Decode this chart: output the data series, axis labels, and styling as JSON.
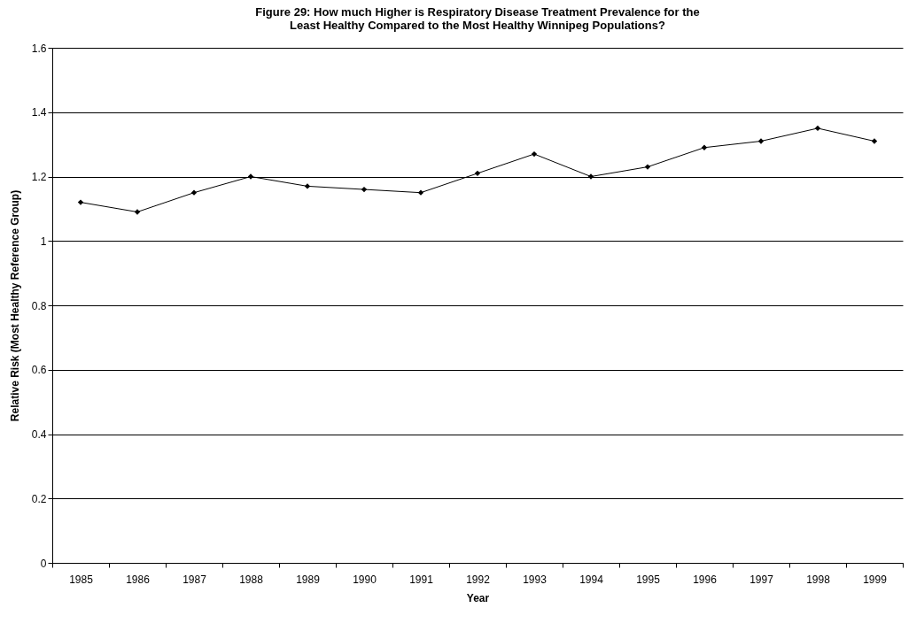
{
  "chart_data": {
    "type": "line",
    "title": "Figure 29: How much Higher is Respiratory Disease Treatment Prevalence for the Least Healthy Compared to the Most Healthy Winnipeg Populations?",
    "xlabel": "Year",
    "ylabel": "Relative Risk (Most Healthy Reference Group)",
    "categories": [
      "1985",
      "1986",
      "1987",
      "1988",
      "1989",
      "1990",
      "1991",
      "1992",
      "1993",
      "1994",
      "1995",
      "1996",
      "1997",
      "1998",
      "1999"
    ],
    "series": [
      {
        "color": "#000000",
        "values": [
          1.12,
          1.09,
          1.15,
          1.2,
          1.17,
          1.16,
          1.15,
          1.21,
          1.27,
          1.2,
          1.23,
          1.29,
          1.31,
          1.35,
          1.31
        ]
      }
    ],
    "ylim": [
      0,
      1.6
    ],
    "yticks": [
      0,
      0.2,
      0.4,
      0.6,
      0.8,
      1,
      1.2,
      1.4,
      1.6
    ],
    "grid": "y",
    "marker": "diamond",
    "line_style": "solid",
    "legend": false
  }
}
